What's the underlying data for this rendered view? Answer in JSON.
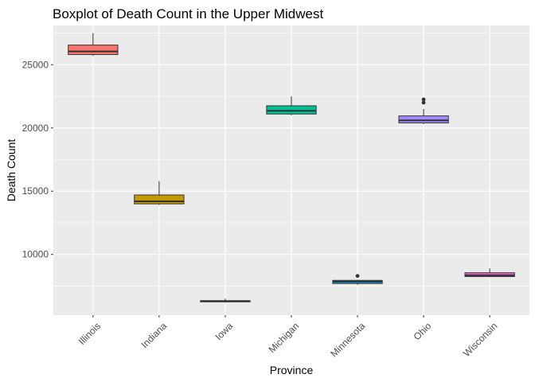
{
  "chart_data": {
    "type": "boxplot",
    "title": "Boxplot of Death Count in the Upper Midwest",
    "xlabel": "Province",
    "ylabel": "Death Count",
    "ylim": [
      5200,
      28100
    ],
    "yticks": [
      10000,
      15000,
      20000,
      25000
    ],
    "ytick_labels": [
      "10000",
      "15000",
      "20000",
      "25000"
    ],
    "grid": true,
    "legend": "none",
    "categories": [
      "Illinois",
      "Indiana",
      "Iowa",
      "Michigan",
      "Minnesota",
      "Ohio",
      "Wisconsin"
    ],
    "boxes": [
      {
        "name": "Illinois",
        "min": 25700,
        "q1": 25800,
        "median": 26050,
        "q3": 26550,
        "max": 27500,
        "outliers": [],
        "color": "#F8766D"
      },
      {
        "name": "Indiana",
        "min": 13900,
        "q1": 14000,
        "median": 14200,
        "q3": 14700,
        "max": 15800,
        "outliers": [],
        "color": "#C49A00"
      },
      {
        "name": "Iowa",
        "min": 6200,
        "q1": 6250,
        "median": 6300,
        "q3": 6350,
        "max": 6500,
        "outliers": [],
        "color": "#53B400"
      },
      {
        "name": "Michigan",
        "min": 21000,
        "q1": 21100,
        "median": 21350,
        "q3": 21750,
        "max": 22500,
        "outliers": [],
        "color": "#00C094"
      },
      {
        "name": "Minnesota",
        "min": 7600,
        "q1": 7700,
        "median": 7850,
        "q3": 7950,
        "max": 8000,
        "outliers": [
          8300
        ],
        "color": "#00B6EB"
      },
      {
        "name": "Ohio",
        "min": 20300,
        "q1": 20400,
        "median": 20600,
        "q3": 20950,
        "max": 21500,
        "outliers": [
          22000,
          22250
        ],
        "color": "#A58AFF"
      },
      {
        "name": "Wisconsin",
        "min": 8200,
        "q1": 8250,
        "median": 8350,
        "q3": 8550,
        "max": 8900,
        "outliers": [],
        "color": "#FB61D7"
      }
    ]
  }
}
